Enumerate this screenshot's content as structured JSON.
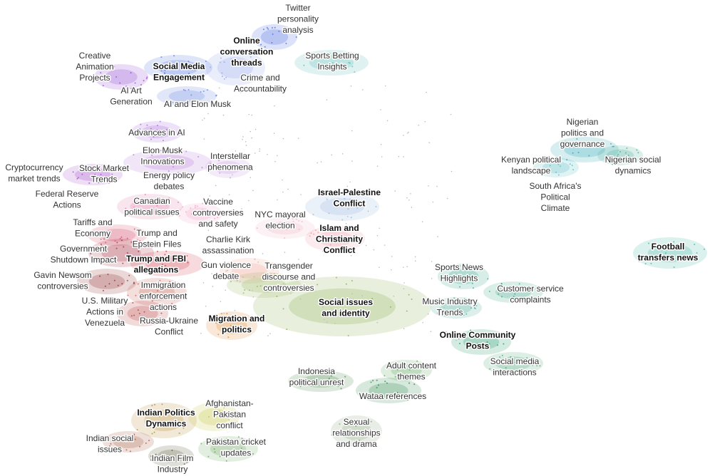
{
  "topics": [
    {
      "lines": [
        "Twitter",
        "personality",
        "analysis"
      ]
    },
    {
      "lines": [
        "Online",
        "conversation",
        "threads"
      ]
    },
    {
      "lines": [
        "Sports Betting",
        "Insights"
      ]
    },
    {
      "lines": [
        "Creative",
        "Animation",
        "Projects"
      ]
    },
    {
      "lines": [
        "Social Media",
        "Engagement"
      ]
    },
    {
      "lines": [
        "Crime and",
        "Accountability"
      ]
    },
    {
      "lines": [
        "AI Art",
        "Generation"
      ]
    },
    {
      "lines": [
        "AI and Elon Musk"
      ]
    },
    {
      "lines": [
        "Advances in AI"
      ]
    },
    {
      "lines": [
        "Nigerian",
        "politics and",
        "governance"
      ]
    },
    {
      "lines": [
        "Nigerian social",
        "dynamics"
      ]
    },
    {
      "lines": [
        "Kenyan political",
        "landscape"
      ]
    },
    {
      "lines": [
        "South Africa's",
        "Political",
        "Climate"
      ]
    },
    {
      "lines": [
        "Elon Musk",
        "Innovations"
      ]
    },
    {
      "lines": [
        "Interstellar",
        "phenomena"
      ]
    },
    {
      "lines": [
        "Energy policy",
        "debates"
      ]
    },
    {
      "lines": [
        "Cryptocurrency",
        "market trends"
      ]
    },
    {
      "lines": [
        "Stock Market",
        "Trends"
      ]
    },
    {
      "lines": [
        "Federal Reserve",
        "Actions"
      ]
    },
    {
      "lines": [
        "Canadian",
        "political issues"
      ]
    },
    {
      "lines": [
        "Vaccine",
        "controversies",
        "and safety"
      ]
    },
    {
      "lines": [
        "Israel-Palestine",
        "Conflict"
      ]
    },
    {
      "lines": [
        "NYC mayoral",
        "election"
      ]
    },
    {
      "lines": [
        "Tariffs and",
        "Economy"
      ]
    },
    {
      "lines": [
        "Trump and",
        "Epstein Files"
      ]
    },
    {
      "lines": [
        "Islam and",
        "Christianity",
        "Conflict"
      ]
    },
    {
      "lines": [
        "Government",
        "Shutdown Impact"
      ]
    },
    {
      "lines": [
        "Charlie Kirk",
        "assassination"
      ]
    },
    {
      "lines": [
        "Trump and FBI",
        "allegations"
      ]
    },
    {
      "lines": [
        "Gun violence",
        "debate"
      ]
    },
    {
      "lines": [
        "Transgender",
        "discourse and",
        "controversies"
      ]
    },
    {
      "lines": [
        "Gavin Newsom",
        "controversies"
      ]
    },
    {
      "lines": [
        "Immigration",
        "enforcement",
        "actions"
      ]
    },
    {
      "lines": [
        "U.S. Military",
        "Actions in",
        "Venezuela"
      ]
    },
    {
      "lines": [
        "Russia-Ukraine",
        "Conflict"
      ]
    },
    {
      "lines": [
        "Migration and",
        "politics"
      ]
    },
    {
      "lines": [
        "Social issues",
        "and identity"
      ]
    },
    {
      "lines": [
        "Sports News",
        "Highlights"
      ]
    },
    {
      "lines": [
        "Football",
        "transfers news"
      ]
    },
    {
      "lines": [
        "Customer service",
        "complaints"
      ]
    },
    {
      "lines": [
        "Music Industry",
        "Trends"
      ]
    },
    {
      "lines": [
        "Online Community",
        "Posts"
      ]
    },
    {
      "lines": [
        "Social media",
        "interactions"
      ]
    },
    {
      "lines": [
        "Adult content",
        "themes"
      ]
    },
    {
      "lines": [
        "Indonesia",
        "political unrest"
      ]
    },
    {
      "lines": [
        "Wataa references"
      ]
    },
    {
      "lines": [
        "Sexual",
        "relationships",
        "and drama"
      ]
    },
    {
      "lines": [
        "Indian Politics",
        "Dynamics"
      ]
    },
    {
      "lines": [
        "Afghanistan-",
        "Pakistan",
        "conflict"
      ]
    },
    {
      "lines": [
        "Indian social",
        "issues"
      ]
    },
    {
      "lines": [
        "Pakistan cricket",
        "updates"
      ]
    },
    {
      "lines": [
        "Indian Film",
        "Industry"
      ]
    }
  ]
}
